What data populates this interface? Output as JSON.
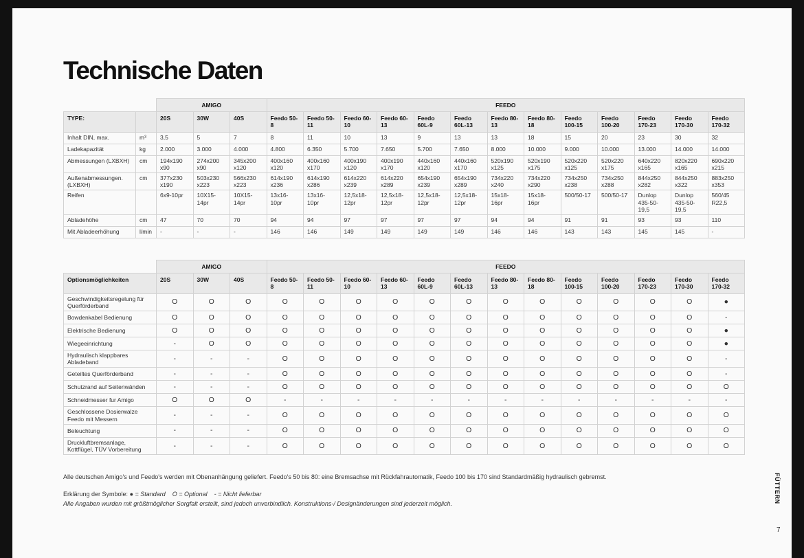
{
  "title": "Technische Daten",
  "table1": {
    "groups": [
      {
        "name": "AMIGO",
        "models": [
          "20S",
          "30W",
          "40S"
        ]
      },
      {
        "name": "FEEDO",
        "models": [
          "Feedo 50-8",
          "Feedo 50-11",
          "Feedo 60-10",
          "Feedo 60-13",
          "Feedo 60L-9",
          "Feedo 60L-13",
          "Feedo 80-13",
          "Feedo 80-18",
          "Feedo 100-15",
          "Feedo 100-20",
          "Feedo 170-23",
          "Feedo 170-30",
          "Feedo 170-32"
        ]
      }
    ],
    "header": "TYPE:",
    "rows": [
      {
        "label": "Inhalt DIN, max.",
        "unit": "m³",
        "values": [
          "3,5",
          "5",
          "7",
          "8",
          "11",
          "10",
          "13",
          "9",
          "13",
          "13",
          "18",
          "15",
          "20",
          "23",
          "30",
          "32"
        ]
      },
      {
        "label": "Ladekapazität",
        "unit": "kg",
        "values": [
          "2.000",
          "3.000",
          "4.000",
          "4.800",
          "6.350",
          "5.700",
          "7.650",
          "5.700",
          "7.650",
          "8.000",
          "10.000",
          "9.000",
          "10.000",
          "13.000",
          "14.000",
          "14.000"
        ]
      },
      {
        "label": "Abmessungen (LXBXH)",
        "unit": "cm",
        "values": [
          "194x190 x90",
          "274x200 x90",
          "345x200 x120",
          "400x160 x120",
          "400x160 x170",
          "400x190 x120",
          "400x190 x170",
          "440x160 x120",
          "440x160 x170",
          "520x190 x125",
          "520x190 x175",
          "520x220 x125",
          "520x220 x175",
          "640x220 x165",
          "820x220 x165",
          "690x220 x215"
        ]
      },
      {
        "label": "Außenabmessungen. (LXBXH)",
        "unit": "cm",
        "values": [
          "377x230 x190",
          "503x230 x223",
          "566x230 x223",
          "614x190 x236",
          "614x190 x286",
          "614x220 x239",
          "614x220 x289",
          "654x190 x239",
          "654x190 x289",
          "734x220 x240",
          "734x220 x290",
          "734x250 x238",
          "734x250 x288",
          "844x250 x282",
          "844x250 x322",
          "883x250 x353"
        ]
      },
      {
        "label": "Reifen",
        "unit": "",
        "values": [
          "6x9-10pr",
          "10X15-14pr",
          "10X15-14pr",
          "13x16-10pr",
          "13x16-10pr",
          "12,5x18- 12pr",
          "12,5x18- 12pr",
          "12,5x18- 12pr",
          "12,5x18- 12pr",
          "15x18-16pr",
          "15x18-16pr",
          "500/50-17",
          "500/50-17",
          "Dunlop 435-50- 19,5",
          "Dunlop 435-50- 19,5",
          "560/45 R22,5"
        ]
      },
      {
        "label": "Abladehöhe",
        "unit": "cm",
        "values": [
          "47",
          "70",
          "70",
          "94",
          "94",
          "97",
          "97",
          "97",
          "97",
          "94",
          "94",
          "91",
          "91",
          "93",
          "93",
          "110"
        ]
      },
      {
        "label": "Mit Abladeerhöhung",
        "unit": "l/min",
        "values": [
          "-",
          "-",
          "-",
          "146",
          "146",
          "149",
          "149",
          "149",
          "149",
          "146",
          "146",
          "143",
          "143",
          "145",
          "145",
          "-"
        ]
      }
    ]
  },
  "table2": {
    "groups": [
      {
        "name": "AMIGO",
        "models": [
          "20S",
          "30W",
          "40S"
        ]
      },
      {
        "name": "FEEDO",
        "models": [
          "Feedo 50-8",
          "Feedo 50-11",
          "Feedo 60-10",
          "Feedo 60-13",
          "Feedo 60L-9",
          "Feedo 60L-13",
          "Feedo 80-13",
          "Feedo 80-18",
          "Feedo 100-15",
          "Feedo 100-20",
          "Feedo 170-23",
          "Feedo 170-30",
          "Feedo 170-32"
        ]
      }
    ],
    "header": "Optionsmöglichkeiten",
    "rows": [
      {
        "label": "Geschwindigkeitsregelung für Querförderband",
        "values": [
          "O",
          "O",
          "O",
          "O",
          "O",
          "O",
          "O",
          "O",
          "O",
          "O",
          "O",
          "O",
          "O",
          "O",
          "O",
          "●"
        ]
      },
      {
        "label": "Bowdenkabel Bedienung",
        "values": [
          "O",
          "O",
          "O",
          "O",
          "O",
          "O",
          "O",
          "O",
          "O",
          "O",
          "O",
          "O",
          "O",
          "O",
          "O",
          "-"
        ]
      },
      {
        "label": "Elektrische Bedienung",
        "values": [
          "O",
          "O",
          "O",
          "O",
          "O",
          "O",
          "O",
          "O",
          "O",
          "O",
          "O",
          "O",
          "O",
          "O",
          "O",
          "●"
        ]
      },
      {
        "label": "Wiegeeinrichtung",
        "values": [
          "-",
          "O",
          "O",
          "O",
          "O",
          "O",
          "O",
          "O",
          "O",
          "O",
          "O",
          "O",
          "O",
          "O",
          "O",
          "●"
        ]
      },
      {
        "label": "Hydraulisch klappbares Abladeband",
        "values": [
          "-",
          "-",
          "-",
          "O",
          "O",
          "O",
          "O",
          "O",
          "O",
          "O",
          "O",
          "O",
          "O",
          "O",
          "O",
          "-"
        ]
      },
      {
        "label": "Geteiltes Querförderband",
        "values": [
          "-",
          "-",
          "-",
          "O",
          "O",
          "O",
          "O",
          "O",
          "O",
          "O",
          "O",
          "O",
          "O",
          "O",
          "O",
          "-"
        ]
      },
      {
        "label": "Schutzrand auf Seitenwänden",
        "values": [
          "-",
          "-",
          "-",
          "O",
          "O",
          "O",
          "O",
          "O",
          "O",
          "O",
          "O",
          "O",
          "O",
          "O",
          "O",
          "O"
        ]
      },
      {
        "label": "Schneidmesser fur Amigo",
        "values": [
          "O",
          "O",
          "O",
          "-",
          "-",
          "-",
          "-",
          "-",
          "-",
          "-",
          "-",
          "-",
          "-",
          "-",
          "-",
          "-"
        ]
      },
      {
        "label": "Geschlossene Dosierwalze Feedo mit Messern",
        "values": [
          "-",
          "-",
          "-",
          "O",
          "O",
          "O",
          "O",
          "O",
          "O",
          "O",
          "O",
          "O",
          "O",
          "O",
          "O",
          "O"
        ]
      },
      {
        "label": "Beleuchtung",
        "values": [
          "-",
          "-",
          "-",
          "O",
          "O",
          "O",
          "O",
          "O",
          "O",
          "O",
          "O",
          "O",
          "O",
          "O",
          "O",
          "O"
        ]
      },
      {
        "label": "Druckluftbremsanlage, Kottflügel, TÜV Vorbereitung",
        "values": [
          "-",
          "-",
          "-",
          "O",
          "O",
          "O",
          "O",
          "O",
          "O",
          "O",
          "O",
          "O",
          "O",
          "O",
          "O",
          "O"
        ]
      }
    ]
  },
  "note": "Alle deutschen Amigo's und Feedo's werden mit Obenanhängung geliefert. Feedo's 50 bis 80: eine Bremsachse mit Rückfahrautomatik, Feedo 100 bis 170 sind Standardmäßig hydraulisch gebremst.",
  "legend": {
    "label": "Erklärung der Symbole:",
    "items": [
      "● = Standard",
      "O = Optional",
      "- = Nicht lieferbar"
    ]
  },
  "disclaimer": "Alle Angaben wurden mit größtmöglicher Sorgfalt erstellt, sind jedoch unverbindlich. Konstruktions-/ Designänderungen sind jederzeit möglich.",
  "side_label": "FÜTTERN",
  "page_number": "7"
}
